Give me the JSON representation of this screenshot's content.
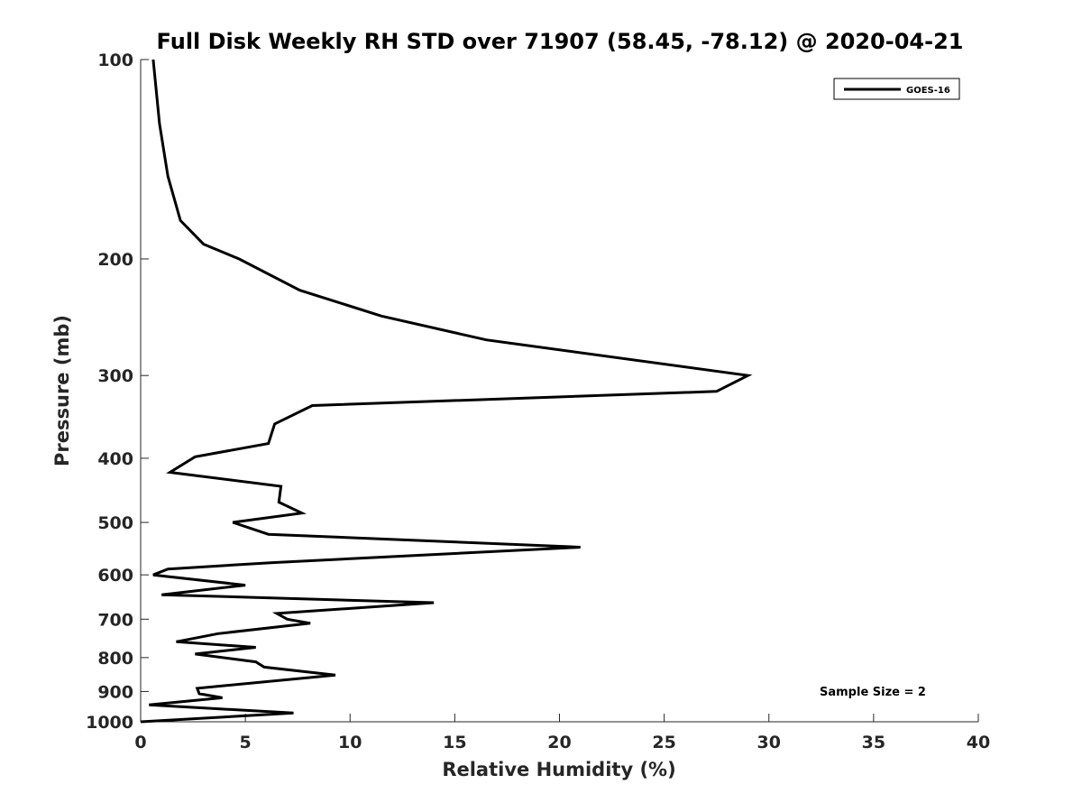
{
  "chart_data": {
    "type": "line",
    "title": "Full Disk Weekly RH STD over 71907 (58.45, -78.12) @ 2020-04-21",
    "xlabel": "Relative Humidity (%)",
    "ylabel": "Pressure (mb)",
    "xlim": [
      0,
      40
    ],
    "ylim": [
      100,
      1000
    ],
    "yscale": "log",
    "y_reversed": true,
    "grid": false,
    "legend_position": "top-right",
    "x_ticks": [
      "0",
      "5",
      "10",
      "15",
      "20",
      "25",
      "30",
      "35",
      "40"
    ],
    "x_tick_values": [
      0,
      5,
      10,
      15,
      20,
      25,
      30,
      35,
      40
    ],
    "y_ticks": [
      "100",
      "200",
      "300",
      "400",
      "500",
      "600",
      "700",
      "800",
      "900",
      "1000"
    ],
    "y_tick_values": [
      100,
      200,
      300,
      400,
      500,
      600,
      700,
      800,
      900,
      1000
    ],
    "series": [
      {
        "name": "GOES-16",
        "color": "#000000",
        "points": [
          [
            0.6,
            100
          ],
          [
            0.9,
            125
          ],
          [
            1.3,
            150
          ],
          [
            1.9,
            175
          ],
          [
            3.0,
            190
          ],
          [
            4.7,
            200
          ],
          [
            7.6,
            223
          ],
          [
            11.5,
            244
          ],
          [
            16.5,
            265
          ],
          [
            29.0,
            300
          ],
          [
            27.5,
            317
          ],
          [
            8.2,
            333
          ],
          [
            6.4,
            355
          ],
          [
            6.1,
            380
          ],
          [
            2.6,
            398
          ],
          [
            1.4,
            420
          ],
          [
            6.7,
            441
          ],
          [
            6.6,
            466
          ],
          [
            7.7,
            484
          ],
          [
            4.4,
            500
          ],
          [
            6.1,
            521
          ],
          [
            21.0,
            545
          ],
          [
            6.3,
            575
          ],
          [
            1.3,
            588
          ],
          [
            0.6,
            600
          ],
          [
            5.0,
            622
          ],
          [
            1.0,
            643
          ],
          [
            14.0,
            661
          ],
          [
            6.5,
            686
          ],
          [
            7.0,
            700
          ],
          [
            8.1,
            710
          ],
          [
            3.7,
            736
          ],
          [
            1.7,
            757
          ],
          [
            5.5,
            772
          ],
          [
            2.6,
            790
          ],
          [
            5.5,
            812
          ],
          [
            5.9,
            827
          ],
          [
            9.3,
            850
          ],
          [
            2.7,
            890
          ],
          [
            2.8,
            907
          ],
          [
            3.9,
            920
          ],
          [
            0.4,
            943
          ],
          [
            7.3,
            970
          ],
          [
            0.0,
            1000
          ]
        ]
      }
    ],
    "annotations": [
      "Sample Size = 2"
    ]
  }
}
